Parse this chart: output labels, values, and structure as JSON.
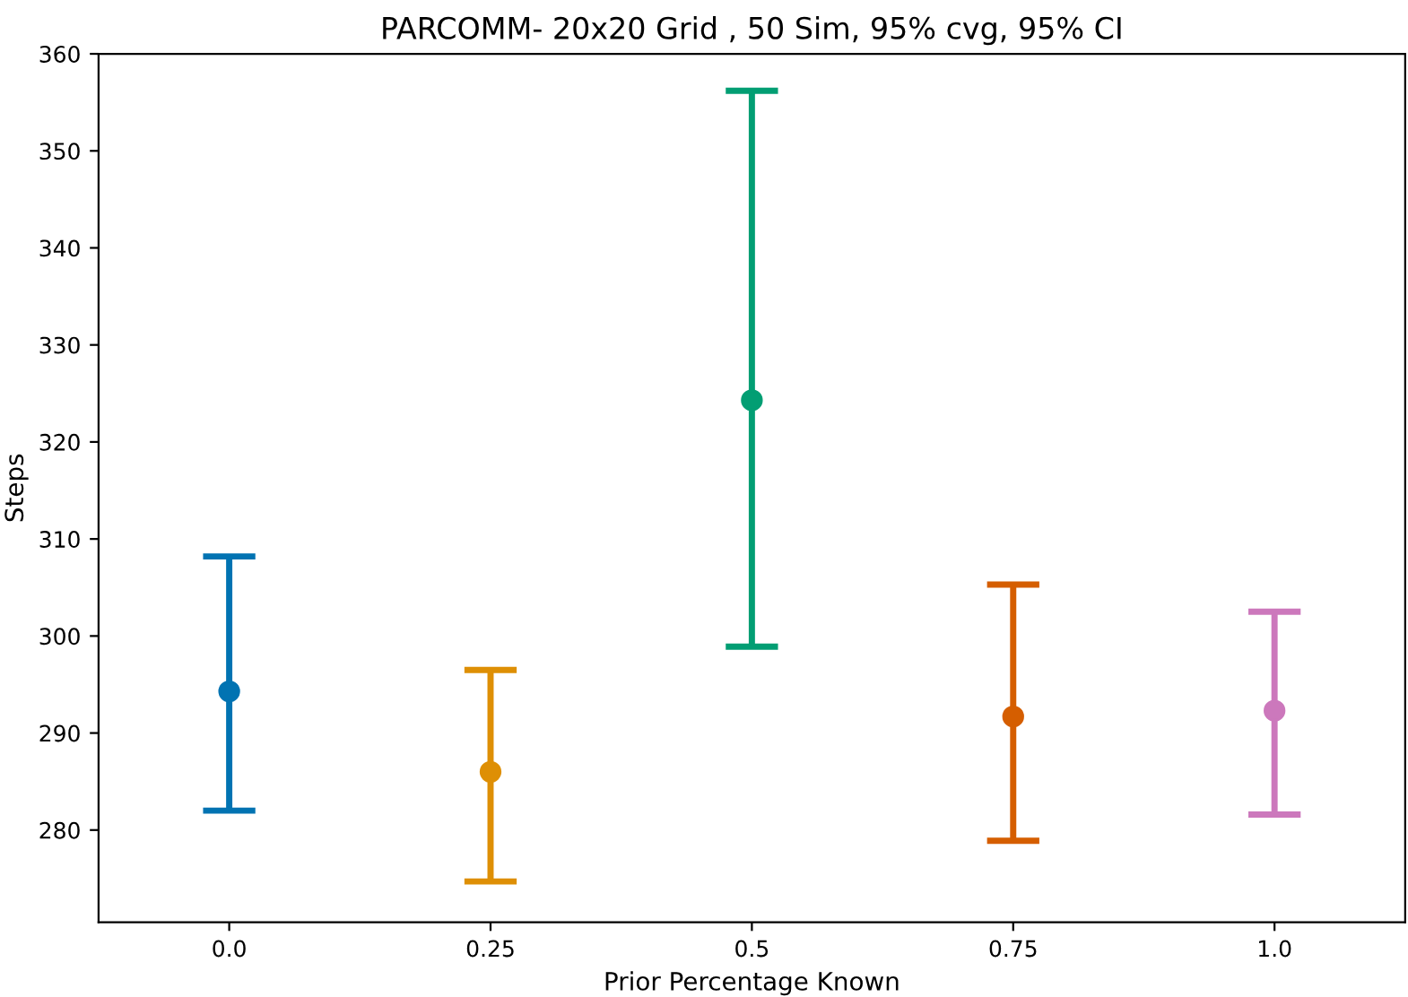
{
  "chart_data": {
    "type": "scatter",
    "title": "PARCOMM- 20x20 Grid , 50 Sim, 95% cvg, 95% CI",
    "xlabel": "Prior Percentage Known",
    "ylabel": "Steps",
    "categories": [
      "0.0",
      "0.25",
      "0.5",
      "0.75",
      "1.0"
    ],
    "values": [
      294.3,
      286.0,
      324.3,
      291.7,
      292.3
    ],
    "errors": [
      [
        282.0,
        308.2
      ],
      [
        274.7,
        296.5
      ],
      [
        298.9,
        356.2
      ],
      [
        278.9,
        305.3
      ],
      [
        281.6,
        302.5
      ]
    ],
    "colors": [
      "#0173b2",
      "#de8f05",
      "#029e73",
      "#d55e00",
      "#cc78bc"
    ],
    "ylim": [
      270.5,
      360
    ],
    "yticks": [
      280,
      290,
      300,
      310,
      320,
      330,
      340,
      350,
      360
    ],
    "marker": "circle",
    "grid": false
  }
}
